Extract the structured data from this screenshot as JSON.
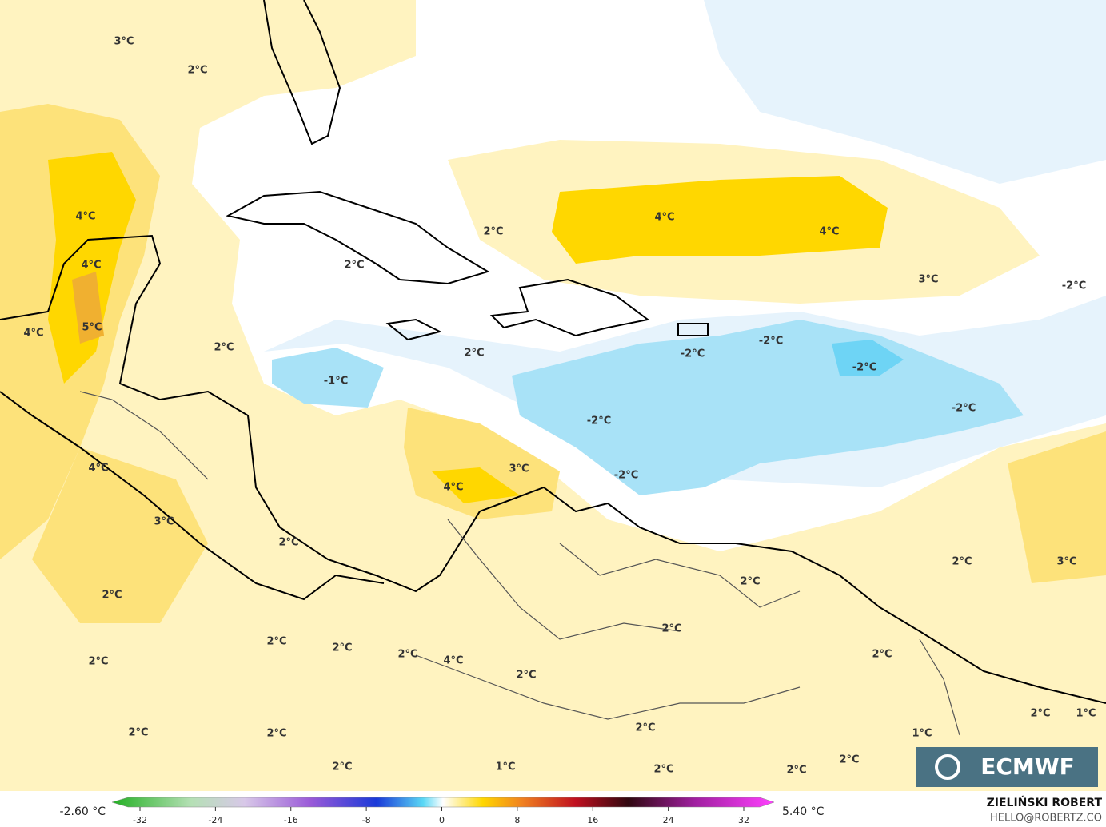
{
  "map": {
    "contour_labels": [
      "3°C",
      "2°C",
      "4°C",
      "4°C",
      "5°C",
      "4°C",
      "2°C",
      "2°C",
      "2°C",
      "4°C",
      "4°C",
      "3°C",
      "-2°C",
      "-2°C",
      "-2°C",
      "-2°C",
      "-2°C",
      "-1°C",
      "2°C",
      "-2°C",
      "3°C",
      "4°C",
      "-2°C",
      "4°C",
      "3°C",
      "2°C",
      "2°C",
      "2°C",
      "2°C",
      "3°C",
      "2°C",
      "2°C",
      "2°C",
      "2°C",
      "4°C",
      "2°C",
      "2°C",
      "2°C",
      "2°C",
      "2°C",
      "2°C",
      "1°C",
      "2°C",
      "1°C",
      "2°C",
      "2°C",
      "1°C",
      "2°C",
      "2°C"
    ],
    "logo": "ECMWF"
  },
  "colorbar": {
    "min_label": "-2.60 °C",
    "max_label": "5.40 °C",
    "lim": [
      -32,
      32
    ],
    "ticks": [
      -32,
      -24,
      -16,
      -8,
      0,
      8,
      16,
      24,
      32
    ]
  },
  "credit": {
    "name": "ZIELIŃSKI ROBERT",
    "contact": "HELLO@ROBERTZ.CO"
  }
}
